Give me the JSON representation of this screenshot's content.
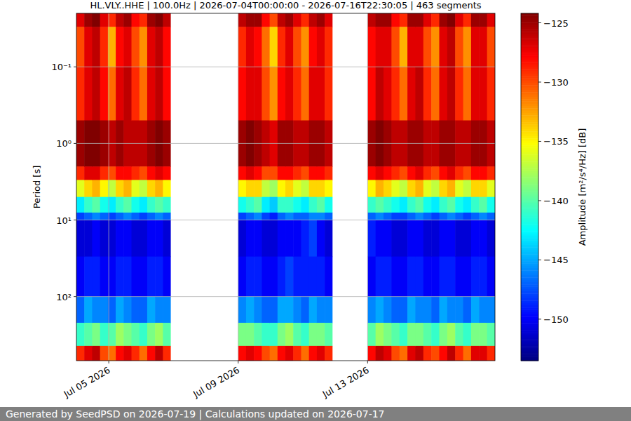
{
  "chart_data": {
    "type": "heatmap",
    "title": "HL.VLY..HHE | 100.0Hz | 2026-07-04T00:00:00 - 2026-07-16T22:30:05 | 463 segments",
    "y_label": "Period [s]",
    "colorbar_label": "Amplitude [m²/s⁴/Hz] [dB]",
    "footer": "Generated by SeedPSD on 2026-07-19 | Calculations updated on 2026-07-17",
    "xlim": [
      "2026-07-04T00:00",
      "2026-07-16T22:30"
    ],
    "xticks": [
      {
        "value": "2026-07-05T00:00",
        "label": "Jul 05 2026"
      },
      {
        "value": "2026-07-09T00:00",
        "label": "Jul 09 2026"
      },
      {
        "value": "2026-07-13T00:00",
        "label": "Jul 13 2026"
      }
    ],
    "ylim": [
      0.02,
      687
    ],
    "yticks": [
      {
        "value": 0.1,
        "label": "10⁻¹"
      },
      {
        "value": 1,
        "label": "10⁰"
      },
      {
        "value": 10,
        "label": "10¹"
      },
      {
        "value": 100,
        "label": "10²"
      }
    ],
    "log": "y",
    "grid": true,
    "period_edges": [
      0.02,
      0.03,
      0.1,
      0.5,
      2,
      3,
      5,
      8,
      10,
      30,
      100,
      220,
      440,
      687
    ],
    "segments": [
      {
        "start": "2026-07-04T00:00",
        "end": "2026-07-06T22:00",
        "values": [
          [
            -127,
            -130,
            -129,
            -125,
            -129,
            -136,
            -143,
            -148,
            -151,
            -150,
            -147,
            -141,
            -129
          ],
          [
            -125,
            -127,
            -127,
            -124,
            -127,
            -134,
            -141,
            -147,
            -151,
            -149,
            -145,
            -140,
            -127
          ],
          [
            -124,
            -126,
            -126,
            -124,
            -127,
            -133,
            -140,
            -146,
            -150,
            -149,
            -146,
            -139,
            -126
          ],
          [
            -127,
            -129,
            -128,
            -125,
            -129,
            -135,
            -142,
            -147,
            -151,
            -150,
            -146,
            -141,
            -130
          ],
          [
            -129,
            -133,
            -131,
            -126,
            -130,
            -137,
            -143,
            -148,
            -151,
            -150,
            -147,
            -140,
            -131
          ],
          [
            -126,
            -128,
            -127,
            -125,
            -128,
            -134,
            -141,
            -147,
            -150,
            -149,
            -145,
            -138,
            -128
          ],
          [
            -125,
            -127,
            -126,
            -126,
            -128,
            -133,
            -140,
            -146,
            -150,
            -149,
            -146,
            -139,
            -127
          ],
          [
            -128,
            -130,
            -129,
            -126,
            -129,
            -136,
            -142,
            -147,
            -151,
            -150,
            -147,
            -140,
            -129
          ],
          [
            -129,
            -132,
            -131,
            -126,
            -130,
            -137,
            -143,
            -148,
            -151,
            -150,
            -147,
            -141,
            -131
          ],
          [
            -125,
            -127,
            -127,
            -125,
            -128,
            -134,
            -141,
            -147,
            -150,
            -149,
            -145,
            -139,
            -128
          ],
          [
            -124,
            -126,
            -126,
            -124,
            -127,
            -133,
            -140,
            -146,
            -150,
            -149,
            -146,
            -138,
            -126
          ],
          [
            -126,
            -128,
            -128,
            -125,
            -128,
            -135,
            -141,
            -147,
            -151,
            -150,
            -146,
            -140,
            -129
          ]
        ]
      },
      {
        "start": "2026-07-09T00:00",
        "end": "2026-07-11T22:00",
        "values": [
          [
            -126,
            -129,
            -128,
            -125,
            -128,
            -135,
            -142,
            -148,
            -151,
            -150,
            -146,
            -139,
            -128
          ],
          [
            -125,
            -127,
            -127,
            -124,
            -127,
            -134,
            -141,
            -147,
            -150,
            -149,
            -145,
            -139,
            -127
          ],
          [
            -125,
            -128,
            -127,
            -125,
            -128,
            -134,
            -140,
            -146,
            -150,
            -149,
            -146,
            -140,
            -128
          ],
          [
            -128,
            -131,
            -130,
            -126,
            -130,
            -137,
            -143,
            -148,
            -151,
            -150,
            -147,
            -141,
            -130
          ],
          [
            -130,
            -134,
            -132,
            -127,
            -130,
            -138,
            -144,
            -149,
            -151,
            -150,
            -147,
            -141,
            -131
          ],
          [
            -126,
            -129,
            -128,
            -125,
            -128,
            -135,
            -141,
            -147,
            -150,
            -149,
            -145,
            -139,
            -128
          ],
          [
            -125,
            -127,
            -127,
            -125,
            -128,
            -134,
            -141,
            -146,
            -150,
            -148,
            -145,
            -138,
            -127
          ],
          [
            -127,
            -130,
            -129,
            -126,
            -129,
            -136,
            -142,
            -147,
            -150,
            -149,
            -146,
            -140,
            -129
          ],
          [
            -129,
            -132,
            -131,
            -126,
            -130,
            -137,
            -143,
            -147,
            -149,
            -149,
            -147,
            -141,
            -131
          ],
          [
            -126,
            -128,
            -127,
            -125,
            -128,
            -134,
            -141,
            -146,
            -148,
            -149,
            -145,
            -139,
            -128
          ],
          [
            -125,
            -127,
            -127,
            -125,
            -128,
            -134,
            -140,
            -146,
            -150,
            -149,
            -146,
            -139,
            -127
          ],
          [
            -127,
            -129,
            -129,
            -126,
            -129,
            -135,
            -142,
            -147,
            -151,
            -150,
            -146,
            -140,
            -129
          ]
        ]
      },
      {
        "start": "2026-07-13T00:00",
        "end": "2026-07-16T22:30",
        "values": [
          [
            -126,
            -128,
            -128,
            -125,
            -128,
            -135,
            -141,
            -147,
            -149,
            -150,
            -146,
            -140,
            -128
          ],
          [
            -125,
            -127,
            -126,
            -124,
            -127,
            -133,
            -140,
            -146,
            -150,
            -149,
            -145,
            -138,
            -126
          ],
          [
            -125,
            -127,
            -127,
            -125,
            -128,
            -134,
            -141,
            -147,
            -150,
            -149,
            -146,
            -139,
            -127
          ],
          [
            -128,
            -130,
            -129,
            -126,
            -129,
            -136,
            -142,
            -148,
            -151,
            -150,
            -147,
            -140,
            -130
          ],
          [
            -129,
            -133,
            -131,
            -126,
            -130,
            -137,
            -143,
            -148,
            -151,
            -150,
            -147,
            -141,
            -131
          ],
          [
            -125,
            -127,
            -127,
            -125,
            -128,
            -134,
            -141,
            -147,
            -150,
            -149,
            -145,
            -139,
            -127
          ],
          [
            -125,
            -127,
            -126,
            -125,
            -127,
            -133,
            -140,
            -146,
            -150,
            -149,
            -146,
            -139,
            -126
          ],
          [
            -127,
            -130,
            -129,
            -126,
            -129,
            -136,
            -142,
            -147,
            -151,
            -150,
            -146,
            -140,
            -129
          ],
          [
            -129,
            -132,
            -131,
            -126,
            -130,
            -137,
            -143,
            -148,
            -151,
            -150,
            -147,
            -141,
            -130
          ],
          [
            -125,
            -127,
            -127,
            -125,
            -128,
            -134,
            -141,
            -147,
            -150,
            -149,
            -145,
            -139,
            -128
          ],
          [
            -124,
            -126,
            -126,
            -125,
            -127,
            -133,
            -140,
            -146,
            -150,
            -149,
            -146,
            -138,
            -126
          ],
          [
            -127,
            -130,
            -129,
            -126,
            -129,
            -136,
            -142,
            -147,
            -151,
            -150,
            -146,
            -140,
            -129
          ],
          [
            -129,
            -132,
            -131,
            -126,
            -130,
            -137,
            -143,
            -148,
            -151,
            -150,
            -147,
            -141,
            -131
          ],
          [
            -125,
            -127,
            -127,
            -125,
            -128,
            -134,
            -141,
            -147,
            -150,
            -149,
            -145,
            -139,
            -127
          ],
          [
            -125,
            -127,
            -127,
            -125,
            -128,
            -134,
            -140,
            -146,
            -150,
            -149,
            -146,
            -139,
            -127
          ],
          [
            -127,
            -130,
            -129,
            -126,
            -129,
            -136,
            -142,
            -147,
            -151,
            -150,
            -146,
            -140,
            -129
          ]
        ]
      }
    ],
    "colorbar": {
      "range": [
        -153.5,
        -124.2
      ],
      "ticks": [
        {
          "value": -125,
          "label": "−125"
        },
        {
          "value": -130,
          "label": "−130"
        },
        {
          "value": -135,
          "label": "−135"
        },
        {
          "value": -140,
          "label": "−140"
        },
        {
          "value": -145,
          "label": "−145"
        },
        {
          "value": -150,
          "label": "−150"
        }
      ]
    }
  }
}
